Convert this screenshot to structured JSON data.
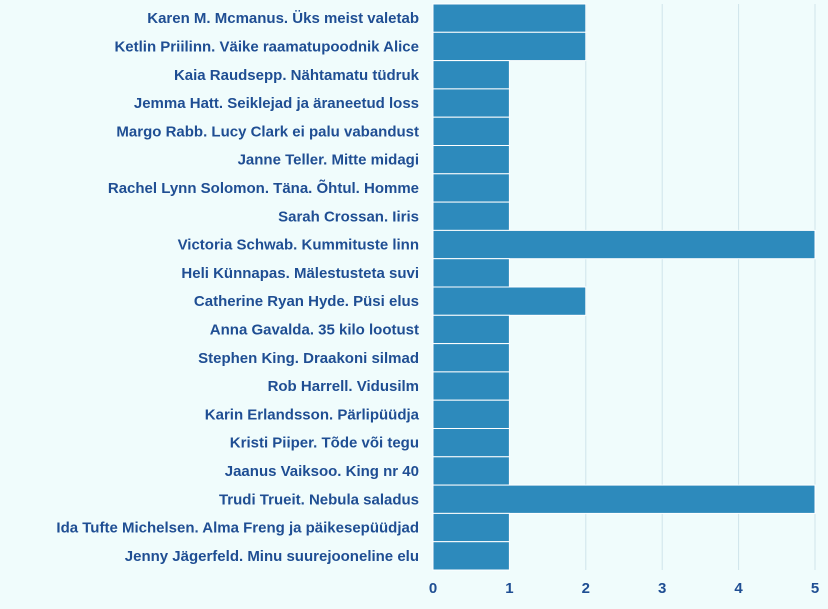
{
  "chart_data": {
    "type": "bar",
    "orientation": "horizontal",
    "categories": [
      "Karen M. Mcmanus. Üks meist valetab",
      "Ketlin Priilinn. Väike raamatupoodnik Alice",
      "Kaia Raudsepp. Nähtamatu tüdruk",
      "Jemma Hatt. Seiklejad ja äraneetud loss",
      "Margo Rabb. Lucy Clark ei palu vabandust",
      "Janne Teller. Mitte midagi",
      "Rachel Lynn Solomon. Täna. Õhtul. Homme",
      "Sarah Crossan. Iiris",
      "Victoria Schwab. Kummituste linn",
      "Heli Künnapas. Mälestusteta suvi",
      "Catherine Ryan Hyde. Püsi elus",
      "Anna Gavalda. 35 kilo lootust",
      "Stephen King. Draakoni silmad",
      "Rob Harrell. Vidusilm",
      "Karin Erlandsson. Pärlipüüdja",
      "Kristi Piiper. Tõde või tegu",
      "Jaanus Vaiksoo. King nr 40",
      "Trudi Trueit. Nebula saladus",
      "Ida Tufte Michelsen. Alma Freng ja päikesepüüdjad",
      "Jenny Jägerfeld. Minu suurejooneline elu"
    ],
    "values": [
      2,
      2,
      1,
      1,
      1,
      1,
      1,
      1,
      5,
      1,
      2,
      1,
      1,
      1,
      1,
      1,
      1,
      5,
      1,
      1
    ],
    "xlim": [
      0,
      5
    ],
    "xticks": [
      "0",
      "1",
      "2",
      "3",
      "4",
      "5"
    ],
    "grid": true,
    "title": "",
    "xlabel": "",
    "ylabel": "",
    "colors": {
      "bar": "#2d8abc",
      "label": "#1f4e93",
      "grid": "#cfe4ea",
      "background": "#f0fcfc"
    }
  }
}
